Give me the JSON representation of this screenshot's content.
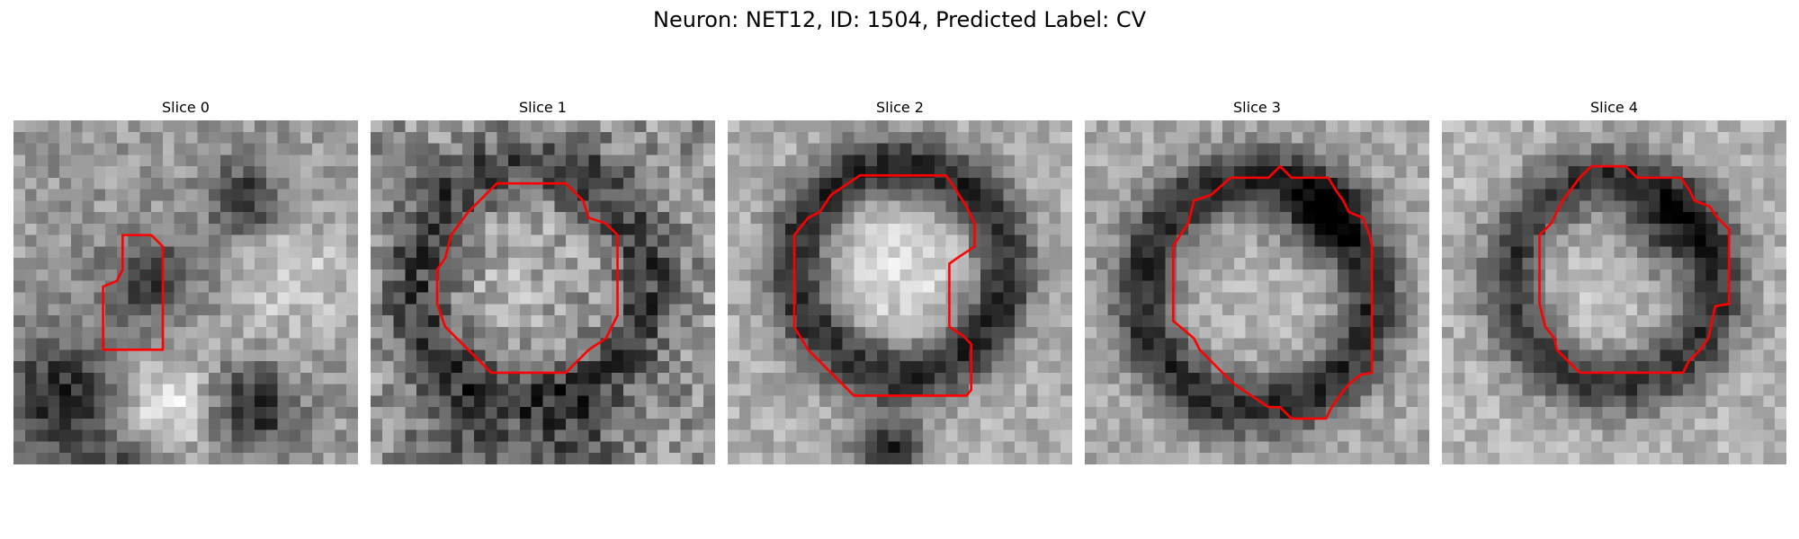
{
  "figure": {
    "title": "Neuron: NET12, ID: 1504, Predicted Label: CV"
  },
  "panels": [
    {
      "title": "Slice 0",
      "texture": "grayscale-em-noise",
      "contour_color": "#ff0000"
    },
    {
      "title": "Slice 1",
      "texture": "grayscale-em-noise",
      "contour_color": "#ff0000"
    },
    {
      "title": "Slice 2",
      "texture": "grayscale-em-noise",
      "contour_color": "#ff0000"
    },
    {
      "title": "Slice 3",
      "texture": "grayscale-em-noise",
      "contour_color": "#ff0000"
    },
    {
      "title": "Slice 4",
      "texture": "grayscale-em-noise",
      "contour_color": "#ff0000"
    }
  ]
}
